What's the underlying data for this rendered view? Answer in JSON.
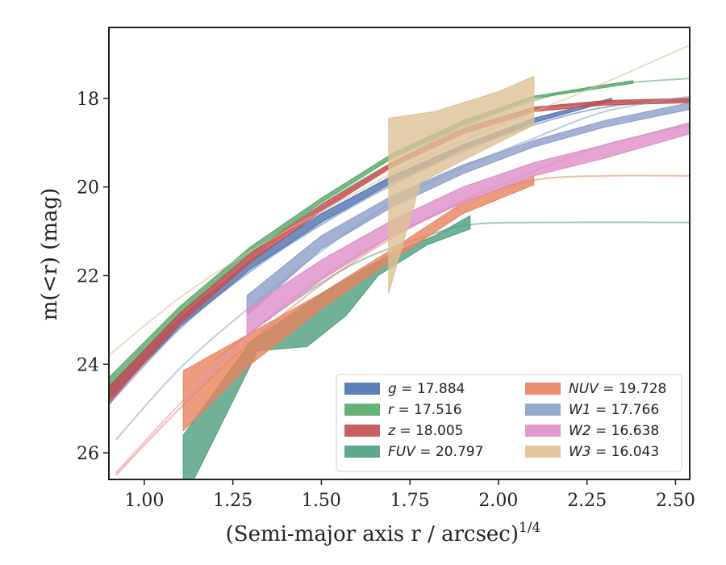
{
  "chart_data": {
    "type": "line",
    "xlabel": "(Semi-major axis r / arcsec)",
    "xlabel_sup": "1/4",
    "ylabel": "m(<r) (mag)",
    "xlim": [
      0.9,
      2.54
    ],
    "ylim": [
      26.6,
      16.4
    ],
    "y_inverted": true,
    "grid": false,
    "legend_placement": "lower-right",
    "xticks": [
      1.0,
      1.25,
      1.5,
      1.75,
      2.0,
      2.25,
      2.5
    ],
    "xtick_labels": [
      "1.00",
      "1.25",
      "1.50",
      "1.75",
      "2.00",
      "2.25",
      "2.50"
    ],
    "yticks": [
      18,
      20,
      22,
      24,
      26
    ],
    "ytick_labels": [
      "18",
      "20",
      "22",
      "24",
      "26"
    ],
    "series": [
      {
        "name": "g = 17.884",
        "legend_var": "g",
        "legend_val": "17.884",
        "color": "#4c72b0",
        "model": [
          [
            0.9,
            24.9
          ],
          [
            1.1,
            23.2
          ],
          [
            1.3,
            21.9
          ],
          [
            1.5,
            20.85
          ],
          [
            1.7,
            19.95
          ],
          [
            1.9,
            19.2
          ],
          [
            2.1,
            18.6
          ],
          [
            2.3,
            18.2
          ],
          [
            2.54,
            18.0
          ]
        ],
        "band_upper": [
          [
            0.9,
            24.5
          ],
          [
            1.1,
            22.95
          ],
          [
            1.3,
            21.65
          ],
          [
            1.5,
            20.6
          ],
          [
            1.7,
            19.75
          ],
          [
            1.9,
            19.05
          ],
          [
            2.1,
            18.45
          ],
          [
            2.32,
            18.0
          ]
        ],
        "band_lower": [
          [
            0.9,
            24.8
          ],
          [
            1.1,
            23.15
          ],
          [
            1.3,
            21.85
          ],
          [
            1.5,
            20.8
          ],
          [
            1.7,
            19.9
          ],
          [
            1.9,
            19.15
          ],
          [
            2.1,
            18.55
          ],
          [
            2.32,
            18.05
          ]
        ]
      },
      {
        "name": "r = 17.516",
        "legend_var": "r",
        "legend_val": "17.516",
        "color": "#55a868",
        "model": [
          [
            0.9,
            24.6
          ],
          [
            1.1,
            22.9
          ],
          [
            1.3,
            21.55
          ],
          [
            1.5,
            20.4
          ],
          [
            1.7,
            19.45
          ],
          [
            1.9,
            18.65
          ],
          [
            2.1,
            18.05
          ],
          [
            2.3,
            17.7
          ],
          [
            2.54,
            17.55
          ]
        ],
        "band_upper": [
          [
            0.9,
            24.3
          ],
          [
            1.1,
            22.7
          ],
          [
            1.3,
            21.35
          ],
          [
            1.5,
            20.25
          ],
          [
            1.7,
            19.25
          ],
          [
            1.9,
            18.5
          ],
          [
            2.1,
            17.95
          ],
          [
            2.38,
            17.6
          ]
        ],
        "band_lower": [
          [
            0.9,
            24.55
          ],
          [
            1.1,
            22.9
          ],
          [
            1.3,
            21.5
          ],
          [
            1.5,
            20.35
          ],
          [
            1.7,
            19.35
          ],
          [
            1.9,
            18.6
          ],
          [
            2.1,
            18.0
          ],
          [
            2.38,
            17.66
          ]
        ]
      },
      {
        "name": "z = 18.005",
        "legend_var": "z",
        "legend_val": "18.005",
        "color": "#c44e52",
        "model": [
          [
            0.9,
            24.9
          ],
          [
            1.1,
            23.0
          ],
          [
            1.3,
            21.6
          ],
          [
            1.5,
            20.5
          ],
          [
            1.7,
            19.5
          ],
          [
            1.9,
            18.7
          ],
          [
            2.1,
            18.25
          ],
          [
            2.3,
            18.1
          ],
          [
            2.54,
            18.05
          ]
        ],
        "band_upper": [
          [
            0.9,
            24.5
          ],
          [
            1.1,
            22.85
          ],
          [
            1.3,
            21.5
          ],
          [
            1.5,
            20.4
          ],
          [
            1.7,
            19.45
          ],
          [
            1.9,
            18.7
          ],
          [
            2.1,
            18.2
          ],
          [
            2.3,
            18.05
          ],
          [
            2.54,
            18.0
          ]
        ],
        "band_lower": [
          [
            0.9,
            24.85
          ],
          [
            1.1,
            23.1
          ],
          [
            1.3,
            21.7
          ],
          [
            1.5,
            20.55
          ],
          [
            1.7,
            19.55
          ],
          [
            1.9,
            18.8
          ],
          [
            2.1,
            18.3
          ],
          [
            2.3,
            18.15
          ],
          [
            2.54,
            18.1
          ]
        ]
      },
      {
        "name": "FUV = 20.797",
        "legend_var": "FUV",
        "legend_val": "20.797",
        "color": "#4c9e7e",
        "model": [
          [
            1.2,
            23.9
          ],
          [
            1.4,
            22.7
          ],
          [
            1.6,
            21.7
          ],
          [
            1.8,
            21.1
          ],
          [
            1.92,
            20.85
          ],
          [
            2.1,
            20.8
          ],
          [
            2.54,
            20.8
          ]
        ],
        "band_upper": [
          [
            1.11,
            25.6
          ],
          [
            1.3,
            23.5
          ],
          [
            1.5,
            22.4
          ],
          [
            1.7,
            21.5
          ],
          [
            1.82,
            21.1
          ],
          [
            1.92,
            20.65
          ]
        ],
        "band_lower": [
          [
            1.11,
            26.6
          ],
          [
            1.14,
            26.6
          ],
          [
            1.32,
            23.7
          ],
          [
            1.46,
            23.6
          ],
          [
            1.57,
            22.9
          ],
          [
            1.66,
            22.0
          ],
          [
            1.8,
            21.3
          ],
          [
            1.92,
            20.95
          ]
        ]
      },
      {
        "name": "NUV = 19.728",
        "legend_var": "NUV",
        "legend_val": "19.728",
        "color": "#e8825f",
        "model": [
          [
            0.92,
            26.5
          ],
          [
            1.1,
            25.0
          ],
          [
            1.3,
            23.5
          ],
          [
            1.5,
            22.2
          ],
          [
            1.7,
            21.15
          ],
          [
            1.9,
            20.35
          ],
          [
            2.1,
            19.85
          ],
          [
            2.3,
            19.75
          ],
          [
            2.54,
            19.75
          ]
        ],
        "band_upper": [
          [
            1.11,
            24.15
          ],
          [
            1.3,
            23.3
          ],
          [
            1.5,
            22.4
          ],
          [
            1.7,
            21.4
          ],
          [
            1.9,
            20.35
          ],
          [
            2.1,
            19.75
          ]
        ],
        "band_lower": [
          [
            1.11,
            25.5
          ],
          [
            1.3,
            24.0
          ],
          [
            1.5,
            22.75
          ],
          [
            1.7,
            21.65
          ],
          [
            1.9,
            20.6
          ],
          [
            2.1,
            19.95
          ]
        ]
      },
      {
        "name": "W1 = 17.766",
        "legend_var": "W1",
        "legend_val": "17.766",
        "color": "#8c9ec8",
        "model": [
          [
            0.92,
            25.7
          ],
          [
            1.1,
            24.1
          ],
          [
            1.3,
            22.7
          ],
          [
            1.5,
            21.45
          ],
          [
            1.7,
            20.35
          ],
          [
            1.9,
            19.55
          ],
          [
            2.1,
            18.9
          ],
          [
            2.3,
            18.3
          ],
          [
            2.54,
            17.95
          ]
        ],
        "band_upper": [
          [
            1.29,
            22.45
          ],
          [
            1.5,
            21.1
          ],
          [
            1.7,
            20.2
          ],
          [
            1.9,
            19.5
          ],
          [
            2.1,
            18.95
          ],
          [
            2.3,
            18.5
          ],
          [
            2.54,
            18.1
          ]
        ],
        "band_lower": [
          [
            1.29,
            22.9
          ],
          [
            1.5,
            21.4
          ],
          [
            1.7,
            20.45
          ],
          [
            1.9,
            19.7
          ],
          [
            2.1,
            19.1
          ],
          [
            2.3,
            18.65
          ],
          [
            2.54,
            18.25
          ]
        ]
      },
      {
        "name": "W2 = 16.638",
        "legend_var": "W2",
        "legend_val": "16.638",
        "color": "#dd8ec7",
        "model": [
          [
            0.92,
            26.45
          ],
          [
            1.1,
            24.9
          ],
          [
            1.3,
            23.3
          ],
          [
            1.5,
            22.05
          ],
          [
            1.7,
            21.1
          ],
          [
            1.9,
            20.3
          ],
          [
            2.1,
            19.65
          ],
          [
            2.3,
            19.05
          ],
          [
            2.54,
            18.6
          ]
        ],
        "band_upper": [
          [
            1.29,
            22.75
          ],
          [
            1.5,
            21.65
          ],
          [
            1.7,
            20.75
          ],
          [
            1.9,
            20.0
          ],
          [
            2.1,
            19.45
          ],
          [
            2.3,
            19.05
          ],
          [
            2.54,
            18.55
          ]
        ],
        "band_lower": [
          [
            1.29,
            23.35
          ],
          [
            1.5,
            22.1
          ],
          [
            1.7,
            21.1
          ],
          [
            1.9,
            20.35
          ],
          [
            2.1,
            19.75
          ],
          [
            2.3,
            19.35
          ],
          [
            2.54,
            18.8
          ]
        ]
      },
      {
        "name": "W3 = 16.043",
        "legend_var": "W3",
        "legend_val": "16.043",
        "color": "#ddc095",
        "model": [
          [
            0.9,
            23.8
          ],
          [
            1.1,
            22.5
          ],
          [
            1.3,
            21.45
          ],
          [
            1.5,
            20.55
          ],
          [
            1.7,
            19.7
          ],
          [
            1.9,
            18.95
          ],
          [
            2.1,
            18.3
          ],
          [
            2.3,
            17.65
          ],
          [
            2.54,
            16.8
          ]
        ],
        "band_upper": [
          [
            1.69,
            18.45
          ],
          [
            1.82,
            18.3
          ],
          [
            2.0,
            17.85
          ],
          [
            2.1,
            17.5
          ]
        ],
        "band_lower": [
          [
            1.69,
            22.4
          ],
          [
            1.78,
            19.9
          ],
          [
            1.9,
            19.4
          ],
          [
            2.1,
            18.6
          ]
        ]
      }
    ]
  }
}
